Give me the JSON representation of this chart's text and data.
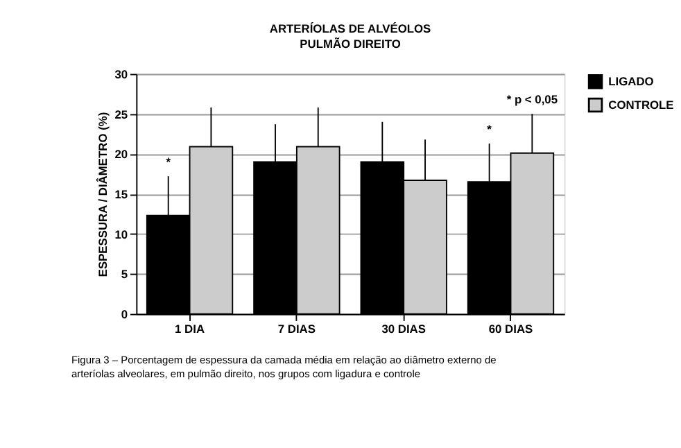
{
  "chart_data": {
    "type": "bar",
    "title": "ARTERÍOLAS DE ALVÉOLOS",
    "subtitle": "PULMÃO DIREITO",
    "ylabel": "ESPESSURA / DIÂMETRO (%)",
    "categories": [
      "1 DIA",
      "7 DIAS",
      "30 DIAS",
      "60 DIAS"
    ],
    "series": [
      {
        "name": "LIGADO",
        "color": "#000000",
        "values": [
          12.3,
          19.0,
          19.0,
          16.5
        ],
        "errors": [
          [
            12.3,
            17.2
          ],
          [
            19.0,
            23.7
          ],
          [
            19.0,
            24.0
          ],
          [
            16.5,
            21.3
          ]
        ]
      },
      {
        "name": "CONTROLE",
        "color": "#cccccc",
        "values": [
          20.9,
          20.9,
          16.7,
          20.1
        ],
        "errors": [
          [
            20.9,
            25.8
          ],
          [
            20.9,
            25.8
          ],
          [
            16.7,
            21.8
          ],
          [
            20.1,
            25.0
          ]
        ]
      }
    ],
    "ylim": [
      0,
      30
    ],
    "yticks": [
      0,
      5,
      10,
      15,
      20,
      25,
      30
    ],
    "grid": "y",
    "legend": "right",
    "annotations": [
      "*",
      "*",
      "* p < 0,05",
      "Figura 3 – Porcentagem de espessura da camada média em relação ao diâmetro externo de arteríolas alveolares, em pulmão direito, nos grupos com ligadura e controle"
    ]
  }
}
